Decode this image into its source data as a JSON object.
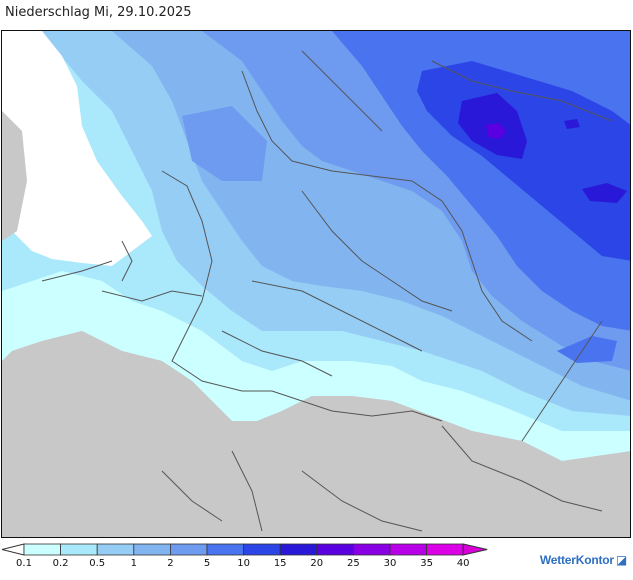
{
  "title": "Niederschlag Mi, 29.10.2025",
  "legend": {
    "labels": [
      "0.1",
      "0.2",
      "0.5",
      "1",
      "2",
      "5",
      "10",
      "15",
      "20",
      "25",
      "30",
      "35",
      "40"
    ],
    "colors": [
      "#ccffff",
      "#aae8fb",
      "#96cdf5",
      "#82b4f0",
      "#6e9bf0",
      "#4a73f0",
      "#2b45e6",
      "#2a18d8",
      "#5a00e0",
      "#8a00e4",
      "#b800e8",
      "#dc00e6",
      "#f000d8"
    ],
    "arrow_left_color": "#ffffff",
    "arrow_right_color": "#d800d8"
  },
  "brand": "WetterKontor",
  "colors": {
    "no_data": "#c8c8c8",
    "sea": "#ffffff",
    "border": "#555555"
  }
}
